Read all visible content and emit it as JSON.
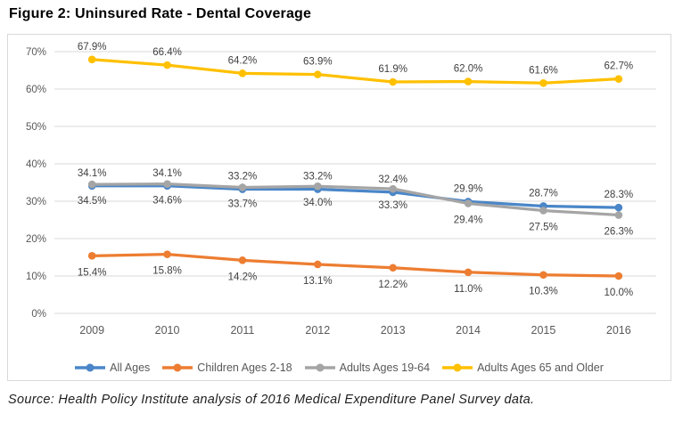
{
  "title": "Figure 2: Uninsured Rate - Dental Coverage",
  "source": {
    "label": "Source:",
    "text": " Health Policy Institute analysis of 2016 Medical Expenditure Panel Survey data."
  },
  "chart_data": {
    "type": "line",
    "title": "Uninsured Rate - Dental Coverage",
    "xlabel": "",
    "ylabel": "",
    "x": [
      "2009",
      "2010",
      "2011",
      "2012",
      "2013",
      "2014",
      "2015",
      "2016"
    ],
    "series": [
      {
        "name": "All Ages",
        "color": "#4A86C8",
        "values": [
          34.1,
          34.1,
          33.2,
          33.2,
          32.4,
          29.9,
          28.7,
          28.3
        ],
        "labels": [
          "34.1%",
          "34.1%",
          "33.2%",
          "33.2%",
          "32.4%",
          "29.9%",
          "28.7%",
          "28.3%"
        ],
        "label_position": "above"
      },
      {
        "name": "Children Ages 2-18",
        "color": "#ED7D31",
        "values": [
          15.4,
          15.8,
          14.2,
          13.1,
          12.2,
          11.0,
          10.3,
          10.0
        ],
        "labels": [
          "15.4%",
          "15.8%",
          "14.2%",
          "13.1%",
          "12.2%",
          "11.0%",
          "10.3%",
          "10.0%"
        ],
        "label_position": "below"
      },
      {
        "name": "Adults Ages 19-64",
        "color": "#A5A5A5",
        "values": [
          34.5,
          34.6,
          33.7,
          34.0,
          33.3,
          29.4,
          27.5,
          26.3
        ],
        "labels": [
          "34.5%",
          "34.6%",
          "33.7%",
          "34.0%",
          "33.3%",
          "29.4%",
          "27.5%",
          "26.3%"
        ],
        "label_position": "below"
      },
      {
        "name": "Adults Ages 65 and Older",
        "color": "#FFC000",
        "values": [
          67.9,
          66.4,
          64.2,
          63.9,
          61.9,
          62.0,
          61.6,
          62.7
        ],
        "labels": [
          "67.9%",
          "66.4%",
          "64.2%",
          "63.9%",
          "61.9%",
          "62.0%",
          "61.6%",
          "62.7%"
        ],
        "label_position": "above"
      }
    ],
    "ylim": [
      0,
      70
    ],
    "ytick_step": 10,
    "ytick_suffix": "%",
    "grid": "horizontal",
    "legend_position": "bottom"
  },
  "style": {
    "grid_color": "#D9D9D9",
    "border_color": "#D9D9D9",
    "axis_text_color": "#595959",
    "data_label_color": "#404040",
    "title_color": "#000000",
    "source_color": "#1f1f1f"
  }
}
